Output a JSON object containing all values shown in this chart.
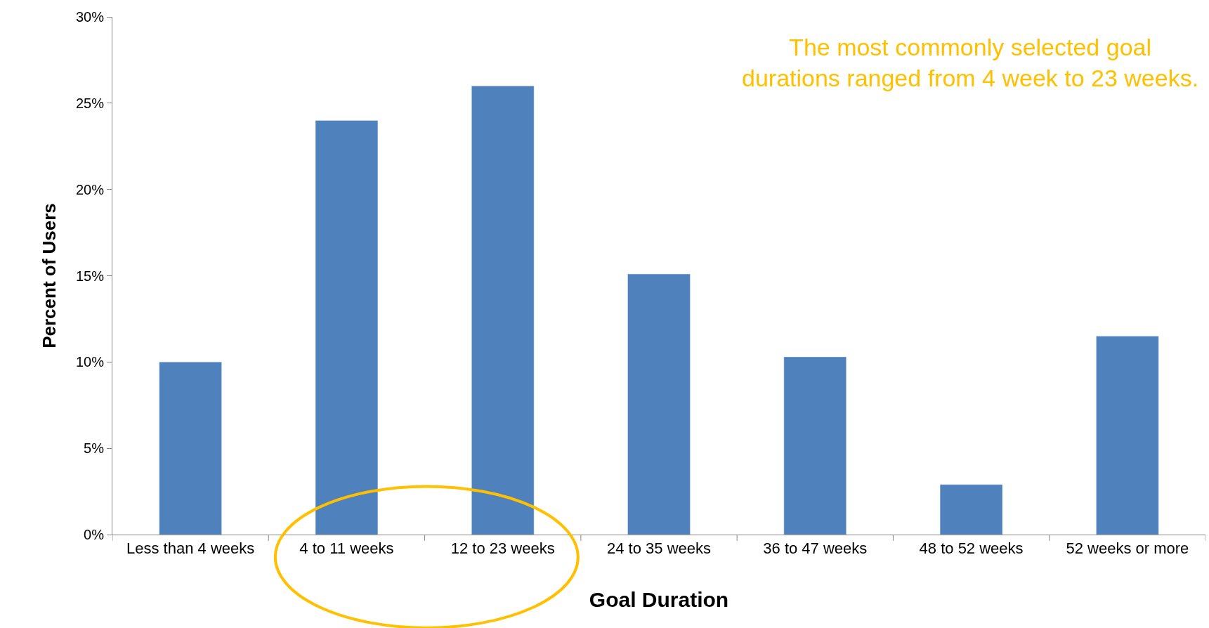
{
  "chart_data": {
    "type": "bar",
    "categories": [
      "Less than 4 weeks",
      "4 to 11 weeks",
      "12 to 23 weeks",
      "24 to 35 weeks",
      "36 to 47 weeks",
      "48 to 52 weeks",
      "52 weeks or more"
    ],
    "values": [
      10,
      24,
      26,
      15.1,
      10.3,
      2.9,
      11.5
    ],
    "color": "#4f81bd",
    "xlabel": "Goal Duration",
    "ylabel": "Percent of Users",
    "ylim": [
      0,
      30
    ],
    "yticks": [
      {
        "value": 0,
        "label": "0%"
      },
      {
        "value": 5,
        "label": "5%"
      },
      {
        "value": 10,
        "label": "10%"
      },
      {
        "value": 15,
        "label": "15%"
      },
      {
        "value": 20,
        "label": "20%"
      },
      {
        "value": 25,
        "label": "25%"
      },
      {
        "value": 30,
        "label": "30%"
      }
    ],
    "annotations": [
      "The most commonly selected goal\ndurations ranged from 4 week to 23 weeks."
    ],
    "tick_labels": "xy"
  }
}
